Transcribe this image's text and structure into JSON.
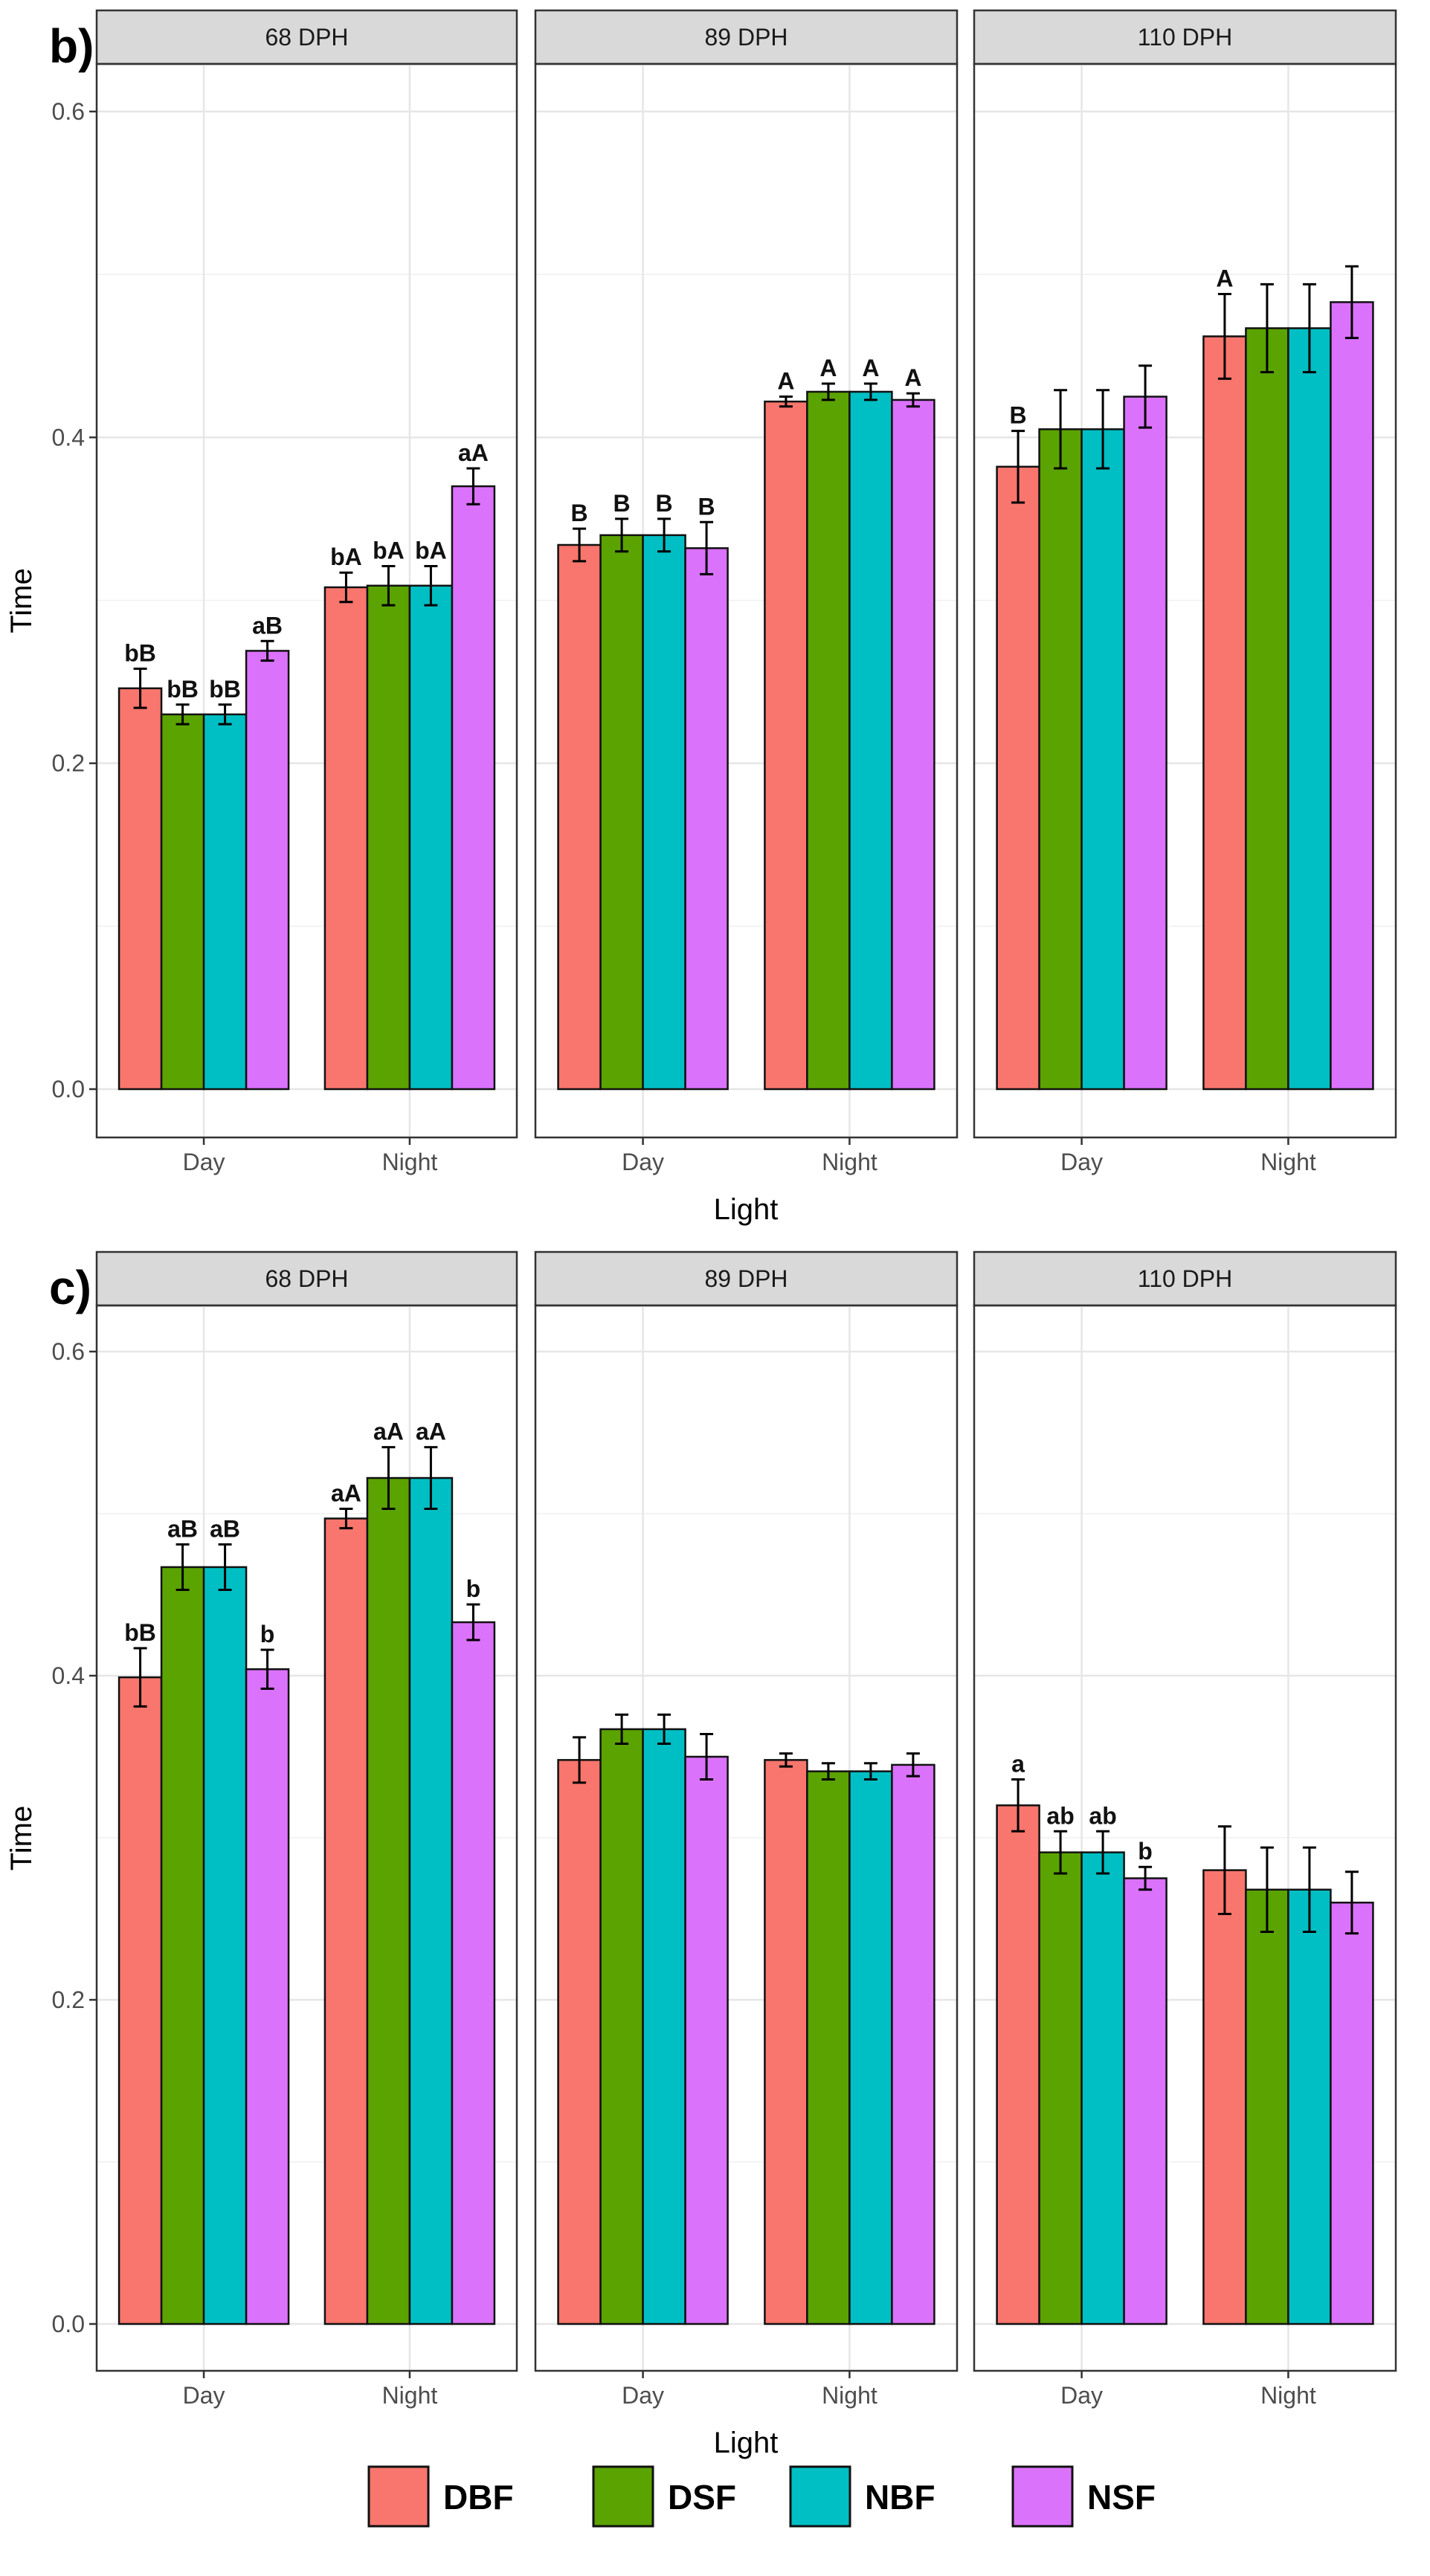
{
  "chart_data": {
    "type": "bar",
    "facet_variable": "DPH",
    "x_label": "Light",
    "y_label": "Time",
    "y_range": [
      0,
      0.6
    ],
    "y_ticks": [
      "0.0",
      "0.2",
      "0.4",
      "0.6"
    ],
    "x_categories": [
      "Day",
      "Night"
    ],
    "facets": [
      "68 DPH",
      "89 DPH",
      "110 DPH"
    ],
    "legend": [
      {
        "name": "DBF",
        "color": "#F8766D"
      },
      {
        "name": "DSF",
        "color": "#5BA300"
      },
      {
        "name": "NBF",
        "color": "#00BFC4"
      },
      {
        "name": "NSF",
        "color": "#DB72FB"
      }
    ],
    "panels": [
      {
        "tag": "b)",
        "facets": [
          {
            "name": "68 DPH",
            "groups": [
              {
                "light": "Day",
                "bars": [
                  {
                    "series": "DBF",
                    "value": 0.246,
                    "error": 0.012,
                    "label": "bB"
                  },
                  {
                    "series": "DSF",
                    "value": 0.23,
                    "error": 0.006,
                    "label": "bB"
                  },
                  {
                    "series": "NBF",
                    "value": 0.23,
                    "error": 0.006,
                    "label": "bB"
                  },
                  {
                    "series": "NSF",
                    "value": 0.269,
                    "error": 0.006,
                    "label": "aB"
                  }
                ]
              },
              {
                "light": "Night",
                "bars": [
                  {
                    "series": "DBF",
                    "value": 0.308,
                    "error": 0.009,
                    "label": "bA"
                  },
                  {
                    "series": "DSF",
                    "value": 0.309,
                    "error": 0.012,
                    "label": "bA"
                  },
                  {
                    "series": "NBF",
                    "value": 0.309,
                    "error": 0.012,
                    "label": "bA"
                  },
                  {
                    "series": "NSF",
                    "value": 0.37,
                    "error": 0.011,
                    "label": "aA"
                  }
                ]
              }
            ]
          },
          {
            "name": "89 DPH",
            "groups": [
              {
                "light": "Day",
                "bars": [
                  {
                    "series": "DBF",
                    "value": 0.334,
                    "error": 0.01,
                    "label": "B"
                  },
                  {
                    "series": "DSF",
                    "value": 0.34,
                    "error": 0.01,
                    "label": "B"
                  },
                  {
                    "series": "NBF",
                    "value": 0.34,
                    "error": 0.01,
                    "label": "B"
                  },
                  {
                    "series": "NSF",
                    "value": 0.332,
                    "error": 0.016,
                    "label": "B"
                  }
                ]
              },
              {
                "light": "Night",
                "bars": [
                  {
                    "series": "DBF",
                    "value": 0.422,
                    "error": 0.003,
                    "label": "A"
                  },
                  {
                    "series": "DSF",
                    "value": 0.428,
                    "error": 0.005,
                    "label": "A"
                  },
                  {
                    "series": "NBF",
                    "value": 0.428,
                    "error": 0.005,
                    "label": "A"
                  },
                  {
                    "series": "NSF",
                    "value": 0.423,
                    "error": 0.004,
                    "label": "A"
                  }
                ]
              }
            ]
          },
          {
            "name": "110 DPH",
            "groups": [
              {
                "light": "Day",
                "bars": [
                  {
                    "series": "DBF",
                    "value": 0.382,
                    "error": 0.022,
                    "label": "B"
                  },
                  {
                    "series": "DSF",
                    "value": 0.405,
                    "error": 0.024,
                    "label": ""
                  },
                  {
                    "series": "NBF",
                    "value": 0.405,
                    "error": 0.024,
                    "label": ""
                  },
                  {
                    "series": "NSF",
                    "value": 0.425,
                    "error": 0.019,
                    "label": ""
                  }
                ]
              },
              {
                "light": "Night",
                "bars": [
                  {
                    "series": "DBF",
                    "value": 0.462,
                    "error": 0.026,
                    "label": "A"
                  },
                  {
                    "series": "DSF",
                    "value": 0.467,
                    "error": 0.027,
                    "label": ""
                  },
                  {
                    "series": "NBF",
                    "value": 0.467,
                    "error": 0.027,
                    "label": ""
                  },
                  {
                    "series": "NSF",
                    "value": 0.483,
                    "error": 0.022,
                    "label": ""
                  }
                ]
              }
            ]
          }
        ]
      },
      {
        "tag": "c)",
        "facets": [
          {
            "name": "68 DPH",
            "groups": [
              {
                "light": "Day",
                "bars": [
                  {
                    "series": "DBF",
                    "value": 0.399,
                    "error": 0.018,
                    "label": "bB"
                  },
                  {
                    "series": "DSF",
                    "value": 0.467,
                    "error": 0.014,
                    "label": "aB"
                  },
                  {
                    "series": "NBF",
                    "value": 0.467,
                    "error": 0.014,
                    "label": "aB"
                  },
                  {
                    "series": "NSF",
                    "value": 0.404,
                    "error": 0.012,
                    "label": "b"
                  }
                ]
              },
              {
                "light": "Night",
                "bars": [
                  {
                    "series": "DBF",
                    "value": 0.497,
                    "error": 0.006,
                    "label": "aA"
                  },
                  {
                    "series": "DSF",
                    "value": 0.522,
                    "error": 0.019,
                    "label": "aA"
                  },
                  {
                    "series": "NBF",
                    "value": 0.522,
                    "error": 0.019,
                    "label": "aA"
                  },
                  {
                    "series": "NSF",
                    "value": 0.433,
                    "error": 0.011,
                    "label": "b"
                  }
                ]
              }
            ]
          },
          {
            "name": "89 DPH",
            "groups": [
              {
                "light": "Day",
                "bars": [
                  {
                    "series": "DBF",
                    "value": 0.348,
                    "error": 0.014,
                    "label": ""
                  },
                  {
                    "series": "DSF",
                    "value": 0.367,
                    "error": 0.009,
                    "label": ""
                  },
                  {
                    "series": "NBF",
                    "value": 0.367,
                    "error": 0.009,
                    "label": ""
                  },
                  {
                    "series": "NSF",
                    "value": 0.35,
                    "error": 0.014,
                    "label": ""
                  }
                ]
              },
              {
                "light": "Night",
                "bars": [
                  {
                    "series": "DBF",
                    "value": 0.348,
                    "error": 0.004,
                    "label": ""
                  },
                  {
                    "series": "DSF",
                    "value": 0.341,
                    "error": 0.005,
                    "label": ""
                  },
                  {
                    "series": "NBF",
                    "value": 0.341,
                    "error": 0.005,
                    "label": ""
                  },
                  {
                    "series": "NSF",
                    "value": 0.345,
                    "error": 0.007,
                    "label": ""
                  }
                ]
              }
            ]
          },
          {
            "name": "110 DPH",
            "groups": [
              {
                "light": "Day",
                "bars": [
                  {
                    "series": "DBF",
                    "value": 0.32,
                    "error": 0.016,
                    "label": "a"
                  },
                  {
                    "series": "DSF",
                    "value": 0.291,
                    "error": 0.013,
                    "label": "ab"
                  },
                  {
                    "series": "NBF",
                    "value": 0.291,
                    "error": 0.013,
                    "label": "ab"
                  },
                  {
                    "series": "NSF",
                    "value": 0.275,
                    "error": 0.007,
                    "label": "b"
                  }
                ]
              },
              {
                "light": "Night",
                "bars": [
                  {
                    "series": "DBF",
                    "value": 0.28,
                    "error": 0.027,
                    "label": ""
                  },
                  {
                    "series": "DSF",
                    "value": 0.268,
                    "error": 0.026,
                    "label": ""
                  },
                  {
                    "series": "NBF",
                    "value": 0.268,
                    "error": 0.026,
                    "label": ""
                  },
                  {
                    "series": "NSF",
                    "value": 0.26,
                    "error": 0.019,
                    "label": ""
                  }
                ]
              }
            ]
          }
        ]
      }
    ]
  }
}
